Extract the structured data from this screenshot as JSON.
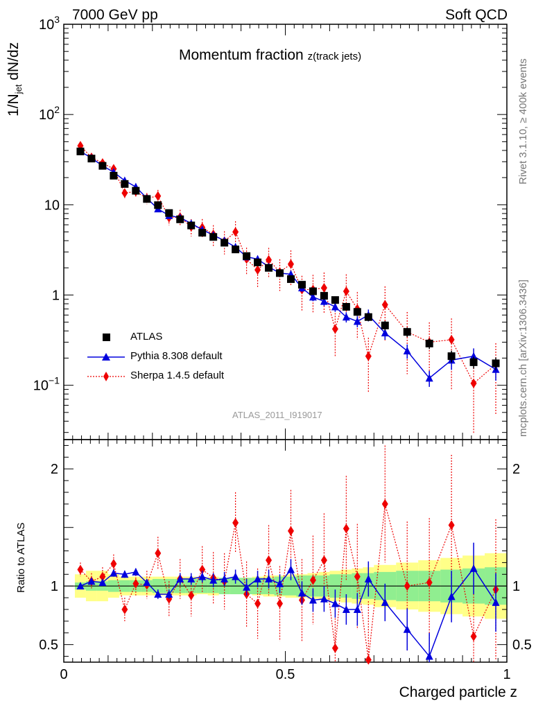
{
  "header": {
    "left": "7000 GeV pp",
    "right": "Soft QCD"
  },
  "side_labels": {
    "rivet": "Rivet 3.1.10, ≥ 400k events",
    "source": "mcplots.cern.ch [arXiv:1306.3436]"
  },
  "analysis_id": "ATLAS_2011_I919017",
  "title": {
    "main": "Momentum fraction ",
    "sub": "z(track jets)"
  },
  "axes": {
    "ylabel_main": "1/N",
    "ylabel_sub": "jet",
    "ylabel_rest": " dN/dz",
    "ratio_ylabel": "Ratio to ATLAS",
    "xlabel": "Charged particle z",
    "main_yticks": [
      {
        "v": 0.1,
        "base": "10",
        "exp": "−1"
      },
      {
        "v": 1,
        "label": "1"
      },
      {
        "v": 10,
        "label": "10"
      },
      {
        "v": 100,
        "base": "10",
        "exp": "2"
      },
      {
        "v": 1000,
        "base": "10",
        "exp": "3"
      }
    ],
    "ratio_yticks": [
      {
        "v": 0.5,
        "label": "0.5"
      },
      {
        "v": 1,
        "label": "1"
      },
      {
        "v": 2,
        "label": "2"
      }
    ],
    "xticks": [
      {
        "v": 0,
        "label": "0"
      },
      {
        "v": 0.5,
        "label": "0.5"
      },
      {
        "v": 1,
        "label": "1"
      }
    ]
  },
  "legend": [
    {
      "label": "ATLAS",
      "series": "ATLAS"
    },
    {
      "label": "Pythia 8.308 default",
      "series": "Pythia"
    },
    {
      "label": "Sherpa 1.4.5 default",
      "series": "Sherpa"
    }
  ],
  "colors": {
    "data": "#000000",
    "pythia": "#0000dd",
    "sherpa": "#ee0000",
    "band_inner": "#90ee90",
    "band_outer": "#ffff88"
  },
  "chart_data": {
    "type": "scatter",
    "xlim": [
      0,
      1
    ],
    "main_ylim": [
      0.025,
      1000
    ],
    "main_yscale": "log",
    "ratio_ylim": [
      0.35,
      2.25
    ],
    "x": [
      0.0375,
      0.0625,
      0.0875,
      0.1125,
      0.1375,
      0.1625,
      0.1875,
      0.2125,
      0.2375,
      0.2625,
      0.2875,
      0.3125,
      0.3375,
      0.3625,
      0.3875,
      0.4125,
      0.4375,
      0.4625,
      0.4875,
      0.5125,
      0.5375,
      0.5625,
      0.5875,
      0.6125,
      0.6375,
      0.6625,
      0.6875,
      0.725,
      0.775,
      0.825,
      0.875,
      0.925,
      0.975
    ],
    "x_edges": [
      0.025,
      0.05,
      0.075,
      0.1,
      0.125,
      0.15,
      0.175,
      0.2,
      0.225,
      0.25,
      0.275,
      0.3,
      0.325,
      0.35,
      0.375,
      0.4,
      0.425,
      0.45,
      0.475,
      0.5,
      0.525,
      0.55,
      0.575,
      0.6,
      0.625,
      0.65,
      0.675,
      0.7,
      0.75,
      0.8,
      0.85,
      0.9,
      0.95,
      1.0
    ],
    "series": [
      {
        "name": "ATLAS",
        "values": [
          39,
          32.5,
          27,
          21,
          17,
          14.3,
          11.6,
          9.9,
          8.1,
          6.9,
          5.9,
          4.9,
          4.4,
          3.8,
          3.2,
          2.7,
          2.3,
          2.0,
          1.75,
          1.5,
          1.3,
          1.1,
          0.98,
          0.88,
          0.74,
          0.65,
          0.57,
          0.46,
          0.39,
          0.29,
          0.21,
          0.18,
          0.175
        ],
        "errors": [
          0.02,
          0.02,
          0.02,
          0.02,
          0.02,
          0.02,
          0.02,
          0.02,
          0.03,
          0.03,
          0.03,
          0.03,
          0.03,
          0.03,
          0.04,
          0.04,
          0.04,
          0.05,
          0.05,
          0.06,
          0.06,
          0.07,
          0.07,
          0.08,
          0.09,
          0.1,
          0.1,
          0.12,
          0.12,
          0.13,
          0.15,
          0.15,
          0.16
        ],
        "band_inner": [
          0.03,
          0.04,
          0.04,
          0.05,
          0.05,
          0.05,
          0.05,
          0.06,
          0.06,
          0.06,
          0.06,
          0.06,
          0.06,
          0.07,
          0.07,
          0.07,
          0.07,
          0.07,
          0.08,
          0.08,
          0.09,
          0.09,
          0.09,
          0.1,
          0.1,
          0.11,
          0.11,
          0.12,
          0.13,
          0.13,
          0.14,
          0.15,
          0.16
        ],
        "band_outer": [
          0.1,
          0.13,
          0.13,
          0.1,
          0.08,
          0.08,
          0.08,
          0.08,
          0.08,
          0.08,
          0.08,
          0.07,
          0.08,
          0.07,
          0.07,
          0.07,
          0.08,
          0.09,
          0.09,
          0.1,
          0.1,
          0.11,
          0.12,
          0.13,
          0.14,
          0.15,
          0.16,
          0.18,
          0.2,
          0.22,
          0.24,
          0.26,
          0.28
        ]
      },
      {
        "name": "Pythia",
        "values": [
          39,
          33,
          27,
          23,
          18.5,
          15.8,
          11.8,
          9.0,
          7.6,
          7.2,
          6.2,
          5.3,
          4.6,
          4.0,
          3.4,
          2.65,
          2.5,
          2.05,
          1.75,
          1.7,
          1.2,
          0.95,
          0.85,
          0.74,
          0.57,
          0.51,
          0.6,
          0.38,
          0.24,
          0.12,
          0.19,
          0.21,
          0.15
        ],
        "ratio": [
          1.0,
          1.04,
          1.03,
          1.11,
          1.1,
          1.12,
          1.03,
          0.93,
          0.93,
          1.06,
          1.06,
          1.08,
          1.05,
          1.06,
          1.08,
          0.99,
          1.06,
          1.06,
          1.02,
          1.14,
          0.94,
          0.88,
          0.89,
          0.85,
          0.8,
          0.8,
          1.06,
          0.86,
          0.63,
          0.4,
          0.91,
          1.15,
          0.86
        ],
        "ratio_err": [
          0.02,
          0.02,
          0.02,
          0.03,
          0.03,
          0.03,
          0.03,
          0.04,
          0.04,
          0.05,
          0.05,
          0.05,
          0.06,
          0.06,
          0.06,
          0.07,
          0.07,
          0.08,
          0.08,
          0.09,
          0.1,
          0.1,
          0.11,
          0.12,
          0.13,
          0.14,
          0.15,
          0.16,
          0.18,
          0.2,
          0.22,
          0.22,
          0.25
        ]
      },
      {
        "name": "Sherpa",
        "values": [
          45,
          33.5,
          29,
          25,
          13.5,
          14,
          11.8,
          12.5,
          7.2,
          7.3,
          5.7,
          5.6,
          4.7,
          3.95,
          5.0,
          2.5,
          1.9,
          2.45,
          1.8,
          2.2,
          1.15,
          1.15,
          1.2,
          0.42,
          1.1,
          0.7,
          0.21,
          0.78,
          0.39,
          0.3,
          0.32,
          0.105,
          0.17
        ],
        "ratio": [
          1.14,
          1.04,
          1.08,
          1.19,
          0.8,
          1.02,
          1.01,
          1.28,
          0.89,
          1.06,
          0.92,
          1.14,
          1.07,
          1.04,
          1.54,
          0.93,
          0.85,
          1.22,
          0.85,
          1.47,
          0.88,
          1.05,
          1.22,
          0.47,
          1.49,
          1.08,
          0.37,
          1.7,
          1.0,
          1.03,
          1.52,
          0.57,
          0.97
        ],
        "ratio_err": [
          0.06,
          0.07,
          0.08,
          0.08,
          0.1,
          0.1,
          0.12,
          0.14,
          0.15,
          0.17,
          0.18,
          0.2,
          0.22,
          0.24,
          0.26,
          0.28,
          0.3,
          0.3,
          0.32,
          0.35,
          0.35,
          0.38,
          0.4,
          0.42,
          0.45,
          0.45,
          0.5,
          0.5,
          0.55,
          0.55,
          0.6,
          0.6,
          0.6
        ]
      }
    ]
  }
}
